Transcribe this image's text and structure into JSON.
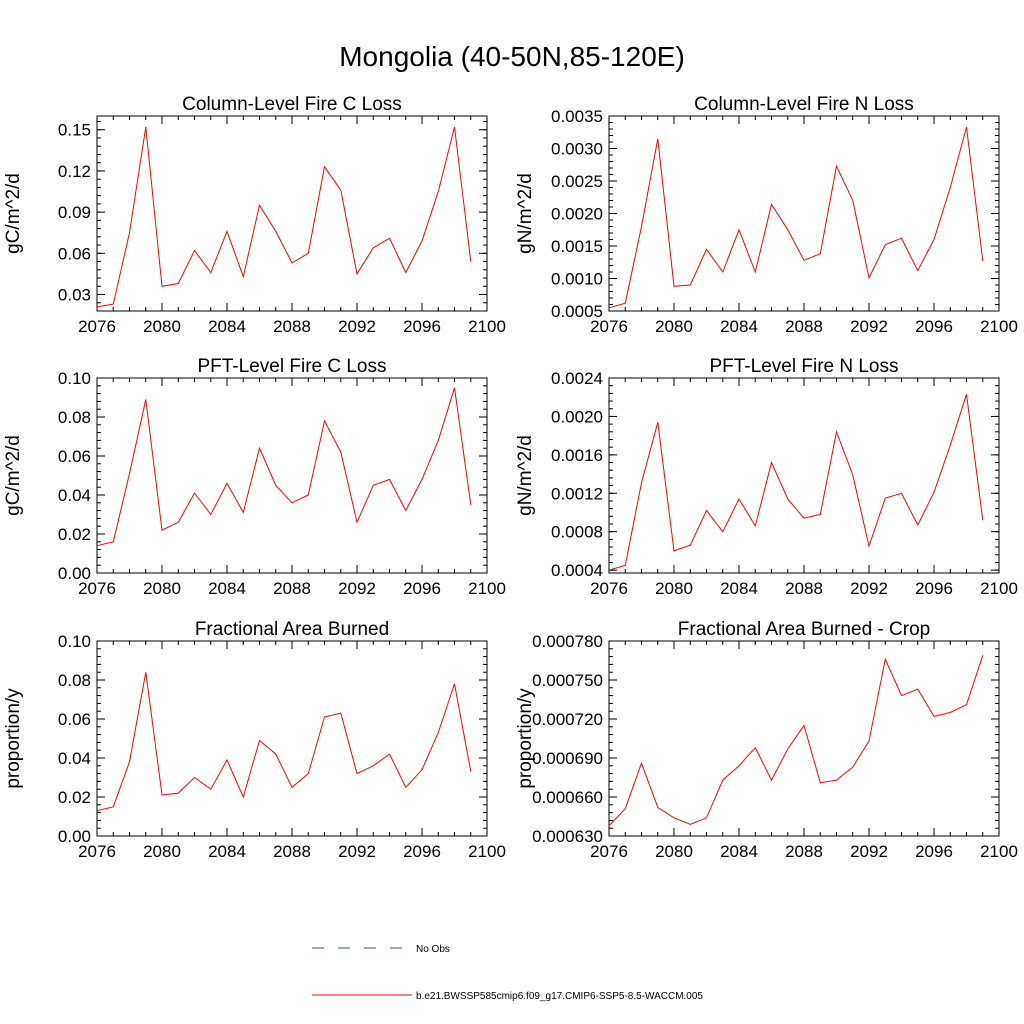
{
  "title": "Mongolia (40-50N,85-120E)",
  "colors": {
    "series": "#ff0000",
    "obs": "#4444aa",
    "axis": "#000000"
  },
  "legend": {
    "no_obs_label": "No Obs",
    "model_label": "b.e21.BWSSP585cmip6.f09_g17.CMIP6-SSP5-8.5-WACCM.005"
  },
  "chart_data": [
    {
      "type": "line",
      "title": "Column-Level Fire C Loss",
      "ylabel": "gC/m^2/d",
      "xlim": [
        2076,
        2100
      ],
      "ylim": [
        0.018,
        0.16
      ],
      "xticks": [
        2076,
        2080,
        2084,
        2088,
        2092,
        2096,
        2100
      ],
      "yticks": [
        0.03,
        0.06,
        0.09,
        0.12,
        0.15
      ],
      "ytick_labels": [
        "0.03",
        "0.06",
        "0.09",
        "0.12",
        "0.15"
      ],
      "series": [
        {
          "x": [
            2076,
            2077,
            2078,
            2079,
            2080,
            2081,
            2082,
            2083,
            2084,
            2085,
            2086,
            2087,
            2088,
            2089,
            2090,
            2091,
            2092,
            2093,
            2094,
            2095,
            2096,
            2097,
            2098,
            2099
          ],
          "values": [
            0.021,
            0.023,
            0.075,
            0.152,
            0.036,
            0.038,
            0.062,
            0.046,
            0.076,
            0.043,
            0.095,
            0.076,
            0.053,
            0.06,
            0.123,
            0.106,
            0.045,
            0.064,
            0.071,
            0.046,
            0.069,
            0.105,
            0.152,
            0.054
          ]
        }
      ]
    },
    {
      "type": "line",
      "title": "Column-Level Fire N Loss",
      "ylabel": "gN/m^2/d",
      "xlim": [
        2076,
        2100
      ],
      "ylim": [
        0.0005,
        0.0035
      ],
      "xticks": [
        2076,
        2080,
        2084,
        2088,
        2092,
        2096,
        2100
      ],
      "yticks": [
        0.0005,
        0.001,
        0.0015,
        0.002,
        0.0025,
        0.003,
        0.0035
      ],
      "ytick_labels": [
        "0.0005",
        "0.0010",
        "0.0015",
        "0.0020",
        "0.0025",
        "0.0030",
        "0.0035"
      ],
      "series": [
        {
          "x": [
            2076,
            2077,
            2078,
            2079,
            2080,
            2081,
            2082,
            2083,
            2084,
            2085,
            2086,
            2087,
            2088,
            2089,
            2090,
            2091,
            2092,
            2093,
            2094,
            2095,
            2096,
            2097,
            2098,
            2099
          ],
          "values": [
            0.00055,
            0.00062,
            0.0018,
            0.00315,
            0.00088,
            0.0009,
            0.00145,
            0.0011,
            0.00175,
            0.0011,
            0.00214,
            0.00175,
            0.00128,
            0.00138,
            0.00273,
            0.0022,
            0.00101,
            0.00152,
            0.00162,
            0.00112,
            0.0016,
            0.0024,
            0.00333,
            0.00127
          ]
        }
      ]
    },
    {
      "type": "line",
      "title": "PFT-Level Fire C Loss",
      "ylabel": "gC/m^2/d",
      "xlim": [
        2076,
        2100
      ],
      "ylim": [
        0,
        0.1
      ],
      "xticks": [
        2076,
        2080,
        2084,
        2088,
        2092,
        2096,
        2100
      ],
      "yticks": [
        0,
        0.02,
        0.04,
        0.06,
        0.08,
        0.1
      ],
      "ytick_labels": [
        "0.00",
        "0.02",
        "0.04",
        "0.06",
        "0.08",
        "0.10"
      ],
      "series": [
        {
          "x": [
            2076,
            2077,
            2078,
            2079,
            2080,
            2081,
            2082,
            2083,
            2084,
            2085,
            2086,
            2087,
            2088,
            2089,
            2090,
            2091,
            2092,
            2093,
            2094,
            2095,
            2096,
            2097,
            2098,
            2099
          ],
          "values": [
            0.014,
            0.016,
            0.051,
            0.089,
            0.022,
            0.026,
            0.041,
            0.03,
            0.046,
            0.031,
            0.064,
            0.045,
            0.036,
            0.04,
            0.078,
            0.062,
            0.026,
            0.045,
            0.048,
            0.032,
            0.048,
            0.068,
            0.095,
            0.035
          ]
        }
      ]
    },
    {
      "type": "line",
      "title": "PFT-Level Fire N Loss",
      "ylabel": "gN/m^2/d",
      "xlim": [
        2076,
        2100
      ],
      "ylim": [
        0.00037,
        0.0024
      ],
      "xticks": [
        2076,
        2080,
        2084,
        2088,
        2092,
        2096,
        2100
      ],
      "yticks": [
        0.0004,
        0.0008,
        0.0012,
        0.0016,
        0.002,
        0.0024
      ],
      "ytick_labels": [
        "0.0004",
        "0.0008",
        "0.0012",
        "0.0016",
        "0.0020",
        "0.0024"
      ],
      "series": [
        {
          "x": [
            2076,
            2077,
            2078,
            2079,
            2080,
            2081,
            2082,
            2083,
            2084,
            2085,
            2086,
            2087,
            2088,
            2089,
            2090,
            2091,
            2092,
            2093,
            2094,
            2095,
            2096,
            2097,
            2098,
            2099
          ],
          "values": [
            0.0004,
            0.00045,
            0.00131,
            0.00194,
            0.0006,
            0.00066,
            0.00102,
            0.0008,
            0.00114,
            0.00086,
            0.00152,
            0.00114,
            0.00094,
            0.00098,
            0.00184,
            0.00139,
            0.00065,
            0.00115,
            0.0012,
            0.00087,
            0.00121,
            0.0017,
            0.00223,
            0.00092
          ]
        }
      ]
    },
    {
      "type": "line",
      "title": "Fractional Area Burned",
      "ylabel": "proportion/y",
      "xlim": [
        2076,
        2100
      ],
      "ylim": [
        0,
        0.1
      ],
      "xticks": [
        2076,
        2080,
        2084,
        2088,
        2092,
        2096,
        2100
      ],
      "yticks": [
        0,
        0.02,
        0.04,
        0.06,
        0.08,
        0.1
      ],
      "ytick_labels": [
        "0.00",
        "0.02",
        "0.04",
        "0.06",
        "0.08",
        "0.10"
      ],
      "series": [
        {
          "x": [
            2076,
            2077,
            2078,
            2079,
            2080,
            2081,
            2082,
            2083,
            2084,
            2085,
            2086,
            2087,
            2088,
            2089,
            2090,
            2091,
            2092,
            2093,
            2094,
            2095,
            2096,
            2097,
            2098,
            2099
          ],
          "values": [
            0.013,
            0.015,
            0.038,
            0.084,
            0.021,
            0.022,
            0.03,
            0.024,
            0.039,
            0.02,
            0.049,
            0.042,
            0.025,
            0.032,
            0.061,
            0.063,
            0.032,
            0.036,
            0.042,
            0.025,
            0.034,
            0.053,
            0.078,
            0.033
          ]
        }
      ]
    },
    {
      "type": "line",
      "title": "Fractional Area Burned - Crop",
      "ylabel": "proportion/y",
      "xlim": [
        2076,
        2100
      ],
      "ylim": [
        0.00063,
        0.00078
      ],
      "xticks": [
        2076,
        2080,
        2084,
        2088,
        2092,
        2096,
        2100
      ],
      "yticks": [
        0.00063,
        0.00066,
        0.00069,
        0.00072,
        0.00075,
        0.00078
      ],
      "ytick_labels": [
        "0.000630",
        "0.000660",
        "0.000690",
        "0.000720",
        "0.000750",
        "0.000780"
      ],
      "series": [
        {
          "x": [
            2076,
            2077,
            2078,
            2079,
            2080,
            2081,
            2082,
            2083,
            2084,
            2085,
            2086,
            2087,
            2088,
            2089,
            2090,
            2091,
            2092,
            2093,
            2094,
            2095,
            2096,
            2097,
            2098,
            2099
          ],
          "values": [
            0.000638,
            0.000651,
            0.000686,
            0.000652,
            0.000644,
            0.000639,
            0.000644,
            0.000673,
            0.000684,
            0.000698,
            0.000673,
            0.000697,
            0.000715,
            0.000671,
            0.000673,
            0.000683,
            0.000703,
            0.000766,
            0.000738,
            0.000743,
            0.000722,
            0.000725,
            0.000731,
            0.000769
          ]
        }
      ]
    }
  ]
}
